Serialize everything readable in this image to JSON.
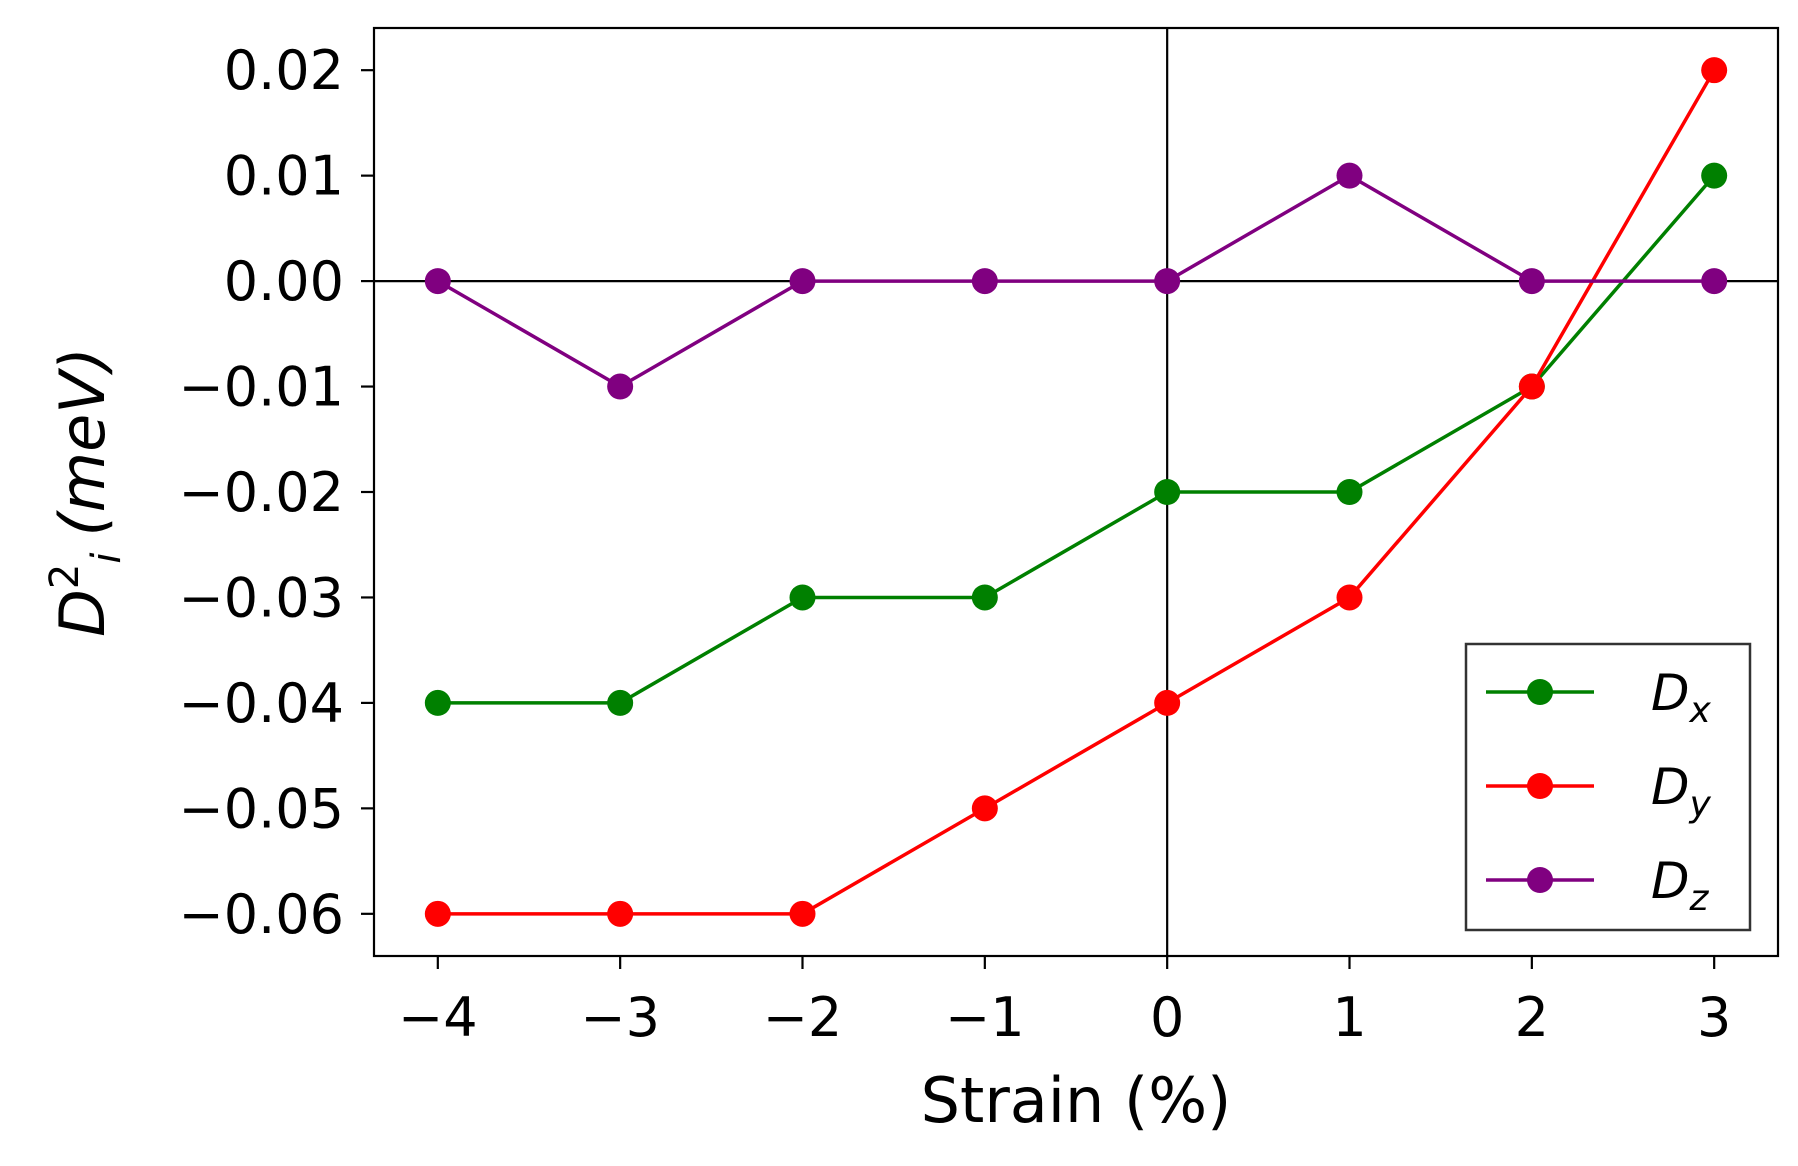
{
  "chart_data": {
    "type": "line",
    "title": "",
    "xlabel": "Strain (%)",
    "ylabel": {
      "base": "D",
      "superscript": "2",
      "subscript": "i",
      "unit": "(meV)"
    },
    "x": [
      -4,
      -3,
      -2,
      -1,
      0,
      1,
      2,
      3
    ],
    "xlim": [
      -4.35,
      3.35
    ],
    "ylim": [
      -0.064,
      0.024
    ],
    "x_ticks": [
      -4,
      -3,
      -2,
      -1,
      0,
      1,
      2,
      3
    ],
    "x_tick_labels": [
      "−4",
      "−3",
      "−2",
      "−1",
      "0",
      "1",
      "2",
      "3"
    ],
    "y_ticks": [
      0.02,
      0.01,
      0.0,
      -0.01,
      -0.02,
      -0.03,
      -0.04,
      -0.05,
      -0.06
    ],
    "y_tick_labels": [
      "0.02",
      "0.01",
      "0.00",
      "−0.01",
      "−0.02",
      "−0.03",
      "−0.04",
      "−0.05",
      "−0.06"
    ],
    "reference_lines": {
      "x": 0,
      "y": 0
    },
    "grid": false,
    "legend_position": "lower-right",
    "series": [
      {
        "name": "D",
        "subscript": "x",
        "color": "#008000",
        "values": [
          -0.04,
          -0.04,
          -0.03,
          -0.03,
          -0.02,
          -0.02,
          -0.01,
          0.01
        ]
      },
      {
        "name": "D",
        "subscript": "y",
        "color": "#ff0000",
        "values": [
          -0.06,
          -0.06,
          -0.06,
          -0.05,
          -0.04,
          -0.03,
          -0.01,
          0.02
        ]
      },
      {
        "name": "D",
        "subscript": "z",
        "color": "#800080",
        "values": [
          0.0,
          -0.01,
          0.0,
          0.0,
          0.0,
          0.01,
          0.0,
          0.0
        ]
      }
    ]
  }
}
